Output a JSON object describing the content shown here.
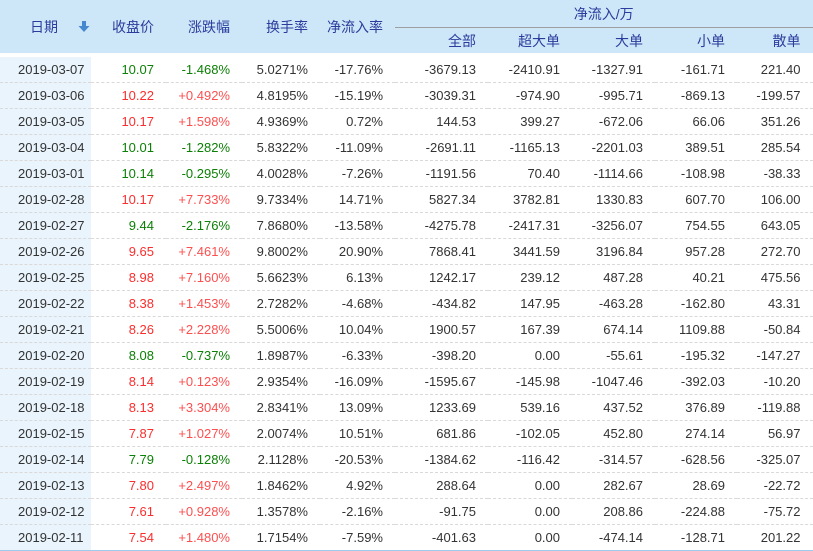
{
  "colors": {
    "header_bg": "#cde7f8",
    "date_column_bg": "#e9f4fc",
    "header_text": "#2b3c9d",
    "up_red": "#fa2e2e",
    "up_pct_red": "#fc5050",
    "down_green": "#0c8006",
    "neutral_text": "#333333",
    "sort_arrow_blue": "#4688cf"
  },
  "table": {
    "columns": {
      "date": "日期",
      "close": "收盘价",
      "change_pct": "涨跌幅",
      "turnover": "换手率",
      "net_inflow_rate": "净流入率",
      "net_inflow_group": "净流入/万",
      "all": "全部",
      "super_large": "超大单",
      "large": "大单",
      "small": "小单",
      "retail": "散单"
    },
    "icons": {
      "date_sort": "down-arrow"
    },
    "rows": [
      {
        "date": "2019-03-07",
        "close": "10.07",
        "change_pct": "-1.468%",
        "turnover": "5.0271%",
        "net_inflow_rate": "-17.76%",
        "all": "-3679.13",
        "super_large": "-2410.91",
        "large": "-1327.91",
        "small": "-161.71",
        "retail": "221.40",
        "direction": "down"
      },
      {
        "date": "2019-03-06",
        "close": "10.22",
        "change_pct": "+0.492%",
        "turnover": "4.8195%",
        "net_inflow_rate": "-15.19%",
        "all": "-3039.31",
        "super_large": "-974.90",
        "large": "-995.71",
        "small": "-869.13",
        "retail": "-199.57",
        "direction": "up"
      },
      {
        "date": "2019-03-05",
        "close": "10.17",
        "change_pct": "+1.598%",
        "turnover": "4.9369%",
        "net_inflow_rate": "0.72%",
        "all": "144.53",
        "super_large": "399.27",
        "large": "-672.06",
        "small": "66.06",
        "retail": "351.26",
        "direction": "up"
      },
      {
        "date": "2019-03-04",
        "close": "10.01",
        "change_pct": "-1.282%",
        "turnover": "5.8322%",
        "net_inflow_rate": "-11.09%",
        "all": "-2691.11",
        "super_large": "-1165.13",
        "large": "-2201.03",
        "small": "389.51",
        "retail": "285.54",
        "direction": "down"
      },
      {
        "date": "2019-03-01",
        "close": "10.14",
        "change_pct": "-0.295%",
        "turnover": "4.0028%",
        "net_inflow_rate": "-7.26%",
        "all": "-1191.56",
        "super_large": "70.40",
        "large": "-1114.66",
        "small": "-108.98",
        "retail": "-38.33",
        "direction": "down"
      },
      {
        "date": "2019-02-28",
        "close": "10.17",
        "change_pct": "+7.733%",
        "turnover": "9.7334%",
        "net_inflow_rate": "14.71%",
        "all": "5827.34",
        "super_large": "3782.81",
        "large": "1330.83",
        "small": "607.70",
        "retail": "106.00",
        "direction": "up"
      },
      {
        "date": "2019-02-27",
        "close": "9.44",
        "change_pct": "-2.176%",
        "turnover": "7.8680%",
        "net_inflow_rate": "-13.58%",
        "all": "-4275.78",
        "super_large": "-2417.31",
        "large": "-3256.07",
        "small": "754.55",
        "retail": "643.05",
        "direction": "down"
      },
      {
        "date": "2019-02-26",
        "close": "9.65",
        "change_pct": "+7.461%",
        "turnover": "9.8002%",
        "net_inflow_rate": "20.90%",
        "all": "7868.41",
        "super_large": "3441.59",
        "large": "3196.84",
        "small": "957.28",
        "retail": "272.70",
        "direction": "up"
      },
      {
        "date": "2019-02-25",
        "close": "8.98",
        "change_pct": "+7.160%",
        "turnover": "5.6623%",
        "net_inflow_rate": "6.13%",
        "all": "1242.17",
        "super_large": "239.12",
        "large": "487.28",
        "small": "40.21",
        "retail": "475.56",
        "direction": "up"
      },
      {
        "date": "2019-02-22",
        "close": "8.38",
        "change_pct": "+1.453%",
        "turnover": "2.7282%",
        "net_inflow_rate": "-4.68%",
        "all": "-434.82",
        "super_large": "147.95",
        "large": "-463.28",
        "small": "-162.80",
        "retail": "43.31",
        "direction": "up"
      },
      {
        "date": "2019-02-21",
        "close": "8.26",
        "change_pct": "+2.228%",
        "turnover": "5.5006%",
        "net_inflow_rate": "10.04%",
        "all": "1900.57",
        "super_large": "167.39",
        "large": "674.14",
        "small": "1109.88",
        "retail": "-50.84",
        "direction": "up"
      },
      {
        "date": "2019-02-20",
        "close": "8.08",
        "change_pct": "-0.737%",
        "turnover": "1.8987%",
        "net_inflow_rate": "-6.33%",
        "all": "-398.20",
        "super_large": "0.00",
        "large": "-55.61",
        "small": "-195.32",
        "retail": "-147.27",
        "direction": "down"
      },
      {
        "date": "2019-02-19",
        "close": "8.14",
        "change_pct": "+0.123%",
        "turnover": "2.9354%",
        "net_inflow_rate": "-16.09%",
        "all": "-1595.67",
        "super_large": "-145.98",
        "large": "-1047.46",
        "small": "-392.03",
        "retail": "-10.20",
        "direction": "up"
      },
      {
        "date": "2019-02-18",
        "close": "8.13",
        "change_pct": "+3.304%",
        "turnover": "2.8341%",
        "net_inflow_rate": "13.09%",
        "all": "1233.69",
        "super_large": "539.16",
        "large": "437.52",
        "small": "376.89",
        "retail": "-119.88",
        "direction": "up"
      },
      {
        "date": "2019-02-15",
        "close": "7.87",
        "change_pct": "+1.027%",
        "turnover": "2.0074%",
        "net_inflow_rate": "10.51%",
        "all": "681.86",
        "super_large": "-102.05",
        "large": "452.80",
        "small": "274.14",
        "retail": "56.97",
        "direction": "up"
      },
      {
        "date": "2019-02-14",
        "close": "7.79",
        "change_pct": "-0.128%",
        "turnover": "2.1128%",
        "net_inflow_rate": "-20.53%",
        "all": "-1384.62",
        "super_large": "-116.42",
        "large": "-314.57",
        "small": "-628.56",
        "retail": "-325.07",
        "direction": "down"
      },
      {
        "date": "2019-02-13",
        "close": "7.80",
        "change_pct": "+2.497%",
        "turnover": "1.8462%",
        "net_inflow_rate": "4.92%",
        "all": "288.64",
        "super_large": "0.00",
        "large": "282.67",
        "small": "28.69",
        "retail": "-22.72",
        "direction": "up"
      },
      {
        "date": "2019-02-12",
        "close": "7.61",
        "change_pct": "+0.928%",
        "turnover": "1.3578%",
        "net_inflow_rate": "-2.16%",
        "all": "-91.75",
        "super_large": "0.00",
        "large": "208.86",
        "small": "-224.88",
        "retail": "-75.72",
        "direction": "up"
      },
      {
        "date": "2019-02-11",
        "close": "7.54",
        "change_pct": "+1.480%",
        "turnover": "1.7154%",
        "net_inflow_rate": "-7.59%",
        "all": "-401.63",
        "super_large": "0.00",
        "large": "-474.14",
        "small": "-128.71",
        "retail": "201.22",
        "direction": "up"
      }
    ]
  }
}
